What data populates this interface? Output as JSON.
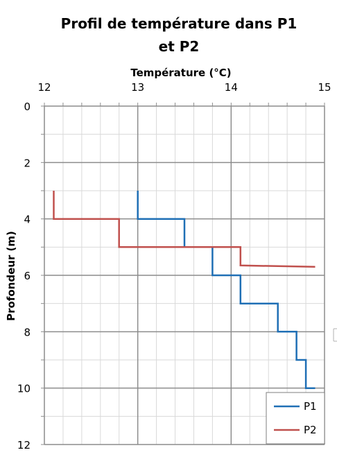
{
  "chart_data": {
    "type": "line",
    "title_line1": "Profil de température dans P1",
    "title_line2": "et P2",
    "xlabel": "Température (°C)",
    "ylabel": "Profondeur (m)",
    "x_axis_position": "top",
    "y_axis_inverted": true,
    "xlim": [
      12,
      15
    ],
    "ylim": [
      0,
      12
    ],
    "x_ticks": [
      "12",
      "13",
      "14",
      "15"
    ],
    "y_ticks": [
      "0",
      "2",
      "4",
      "6",
      "8",
      "10",
      "12"
    ],
    "grid": true,
    "legend_position": "bottom-right",
    "series": [
      {
        "name": "P1",
        "color": "#1f6fb5",
        "points": [
          [
            13.0,
            3.0
          ],
          [
            13.0,
            4.0
          ],
          [
            13.5,
            4.0
          ],
          [
            13.5,
            5.0
          ],
          [
            13.8,
            5.0
          ],
          [
            13.8,
            6.0
          ],
          [
            14.1,
            6.0
          ],
          [
            14.1,
            7.0
          ],
          [
            14.5,
            7.0
          ],
          [
            14.5,
            8.0
          ],
          [
            14.7,
            8.0
          ],
          [
            14.7,
            9.0
          ],
          [
            14.8,
            9.0
          ],
          [
            14.8,
            10.0
          ],
          [
            14.9,
            10.0
          ]
        ]
      },
      {
        "name": "P2",
        "color": "#c0504d",
        "points": [
          [
            12.1,
            3.0
          ],
          [
            12.1,
            4.0
          ],
          [
            12.8,
            4.0
          ],
          [
            12.8,
            5.0
          ],
          [
            14.1,
            5.0
          ],
          [
            14.1,
            5.65
          ],
          [
            14.9,
            5.7
          ]
        ]
      }
    ]
  }
}
